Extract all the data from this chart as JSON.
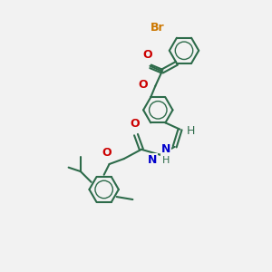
{
  "background_color": "#f2f2f2",
  "bond_color": "#2d6b4a",
  "bond_lw": 1.5,
  "aromatic_inner_lw": 1.0,
  "label_fontsize": 9,
  "atom_colors": {
    "Br": "#cc7700",
    "O": "#cc0000",
    "N": "#0000cc",
    "C": "#2d6b4a"
  },
  "ring_r": 0.55,
  "figsize": [
    3.0,
    3.0
  ],
  "dpi": 100,
  "xlim": [
    0,
    10
  ],
  "ylim": [
    0,
    10
  ]
}
